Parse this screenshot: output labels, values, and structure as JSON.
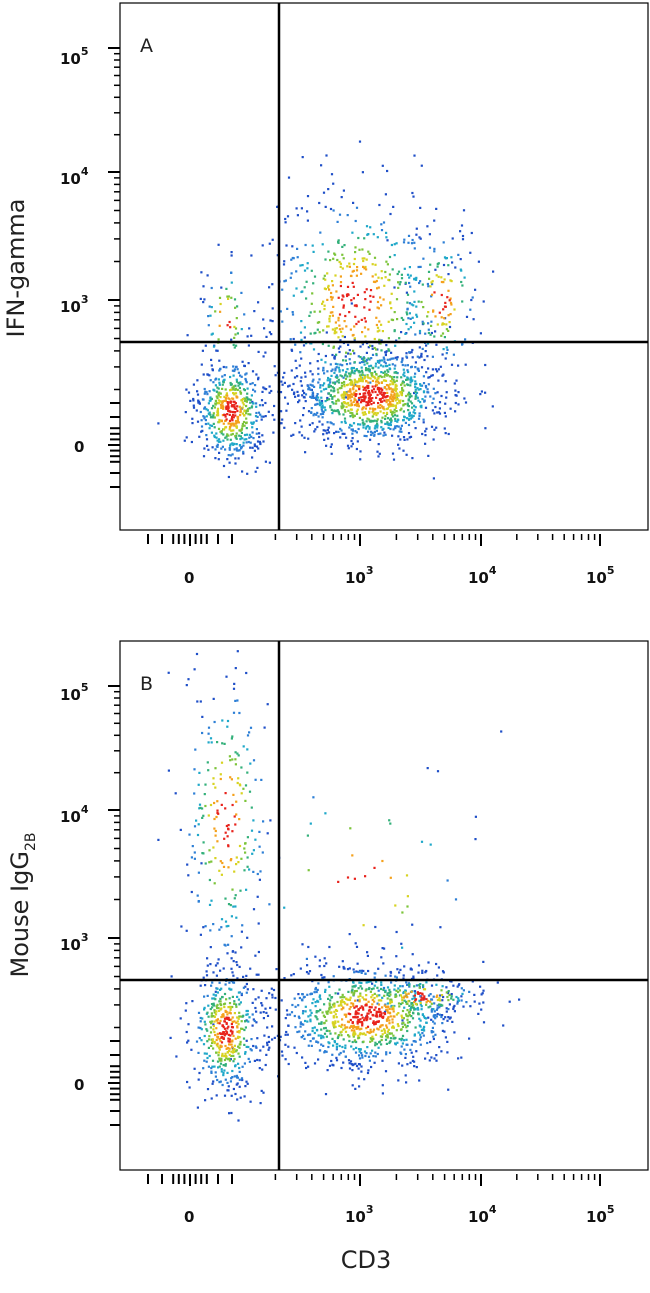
{
  "chart_data": [
    {
      "type": "scatter",
      "panel_label": "A",
      "xlabel": "CD3",
      "ylabel": "IFN-gamma",
      "x_scale": "biexponential",
      "y_scale": "biexponential",
      "x_ticks": [
        {
          "base": "0",
          "exp": ""
        },
        {
          "base": "10",
          "exp": "3"
        },
        {
          "base": "10",
          "exp": "4"
        },
        {
          "base": "10",
          "exp": "5"
        }
      ],
      "y_ticks": [
        {
          "base": "0",
          "exp": ""
        },
        {
          "base": "10",
          "exp": "3"
        },
        {
          "base": "10",
          "exp": "4"
        },
        {
          "base": "10",
          "exp": "5"
        }
      ],
      "quadrant_gate": {
        "x": 250,
        "y": 450
      },
      "populations": [
        {
          "name": "CD3-negative",
          "center": [
            50,
            150
          ],
          "density": "high"
        },
        {
          "name": "CD3-positive",
          "center": [
            1100,
            180
          ],
          "density": "high"
        },
        {
          "name": "CD3-positive IFN-gamma-positive",
          "center": [
            1200,
            1500
          ],
          "density": "medium"
        }
      ]
    },
    {
      "type": "scatter",
      "panel_label": "B",
      "xlabel": "CD3",
      "ylabel": "Mouse IgG",
      "ylabel_subscript": "2B",
      "x_scale": "biexponential",
      "y_scale": "biexponential",
      "x_ticks": [
        {
          "base": "0",
          "exp": ""
        },
        {
          "base": "10",
          "exp": "3"
        },
        {
          "base": "10",
          "exp": "4"
        },
        {
          "base": "10",
          "exp": "5"
        }
      ],
      "y_ticks": [
        {
          "base": "0",
          "exp": ""
        },
        {
          "base": "10",
          "exp": "3"
        },
        {
          "base": "10",
          "exp": "4"
        },
        {
          "base": "10",
          "exp": "5"
        }
      ],
      "quadrant_gate": {
        "x": 250,
        "y": 450
      },
      "populations": [
        {
          "name": "CD3-negative",
          "center": [
            50,
            150
          ],
          "density": "high"
        },
        {
          "name": "CD3-positive",
          "center": [
            1100,
            200
          ],
          "density": "high"
        },
        {
          "name": "CD3-negative high",
          "center": [
            60,
            8000
          ],
          "density": "low"
        }
      ]
    }
  ],
  "colors": {
    "gate": "#000000",
    "axis": "#000000",
    "density_low": "#1f4fc8",
    "density_high": "#e8231c"
  }
}
